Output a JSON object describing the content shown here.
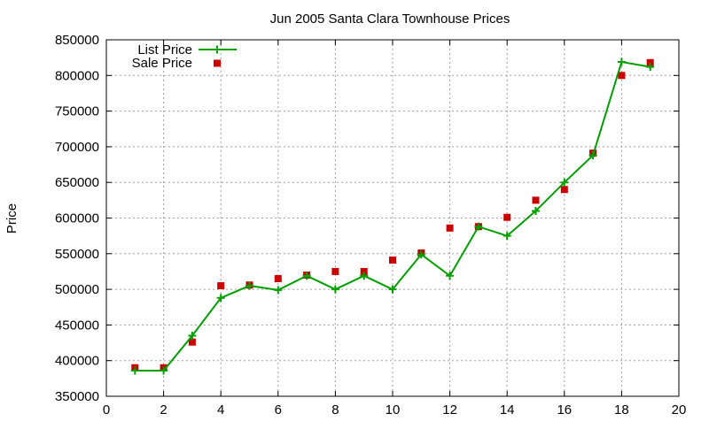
{
  "chart_data": {
    "type": "line",
    "title": "Jun 2005 Santa Clara Townhouse Prices",
    "xlabel": "",
    "ylabel": "Price",
    "xlim": [
      0,
      20
    ],
    "ylim": [
      350000,
      850000
    ],
    "x_ticks": [
      "0",
      "2",
      "4",
      "6",
      "8",
      "10",
      "12",
      "14",
      "16",
      "18",
      "20"
    ],
    "y_ticks": [
      "350000",
      "400000",
      "450000",
      "500000",
      "550000",
      "600000",
      "650000",
      "700000",
      "750000",
      "800000",
      "850000"
    ],
    "grid": true,
    "legend_position": "top-left",
    "series": [
      {
        "name": "List Price",
        "style": "line-with-plus-markers",
        "color": "#00a000",
        "x": [
          1,
          2,
          3,
          4,
          5,
          6,
          7,
          8,
          9,
          10,
          11,
          12,
          13,
          14,
          15,
          16,
          17,
          18,
          19
        ],
        "values": [
          386000,
          386000,
          435000,
          488000,
          505000,
          499000,
          519000,
          500000,
          519000,
          500000,
          549000,
          519000,
          588000,
          575000,
          610000,
          650000,
          688000,
          819000,
          812000
        ]
      },
      {
        "name": "Sale Price",
        "style": "square-markers",
        "color": "#cc0000",
        "x": [
          1,
          2,
          3,
          4,
          5,
          6,
          7,
          8,
          9,
          10,
          11,
          12,
          13,
          14,
          15,
          16,
          17,
          18,
          19
        ],
        "values": [
          390000,
          390000,
          426000,
          505000,
          506000,
          515000,
          520000,
          525000,
          525000,
          541000,
          551000,
          586000,
          588000,
          601000,
          625000,
          640000,
          691000,
          800000,
          818000
        ]
      }
    ]
  }
}
